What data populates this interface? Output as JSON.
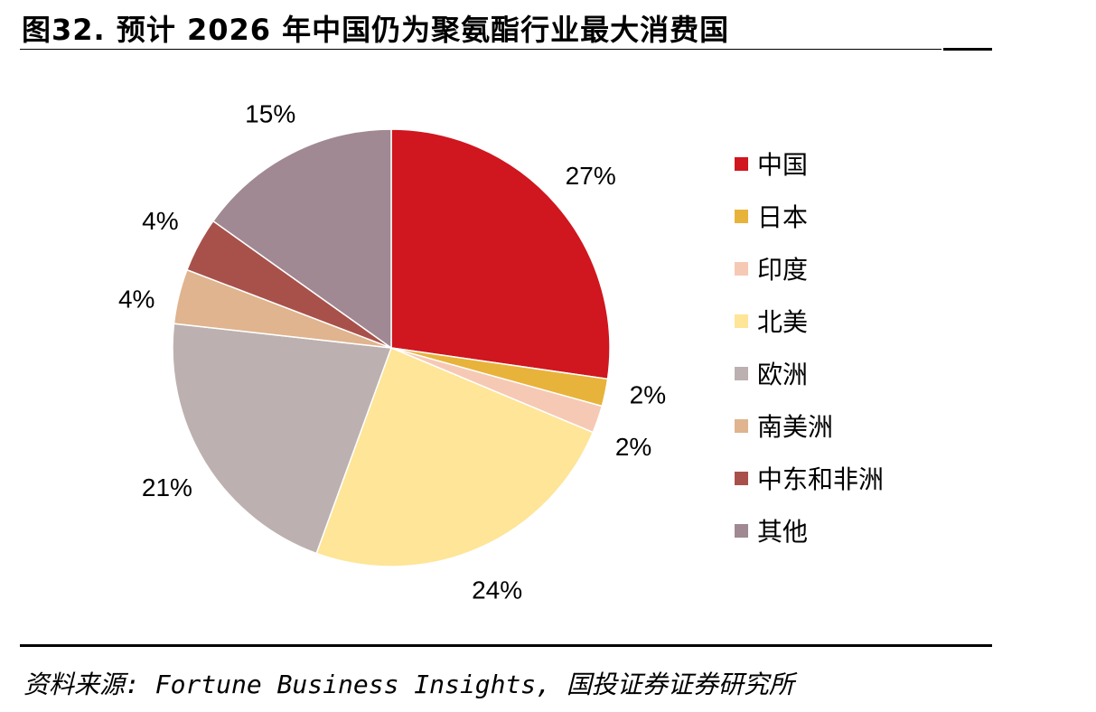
{
  "title": "图32. 预计 2026 年中国仍为聚氨酯行业最大消费国",
  "source": "资料来源: Fortune Business Insights, 国投证券证券研究所",
  "chart_data": {
    "type": "pie",
    "title": "图32. 预计 2026 年中国仍为聚氨酯行业最大消费国",
    "start_angle_deg": 0,
    "direction": "clockwise",
    "legend_position": "right",
    "slices": [
      {
        "label": "中国",
        "value": 27,
        "display": "27%",
        "color": "#D0161E"
      },
      {
        "label": "日本",
        "value": 2,
        "display": "2%",
        "color": "#E8B33A"
      },
      {
        "label": "印度",
        "value": 2,
        "display": "2%",
        "color": "#F6C9B5"
      },
      {
        "label": "北美",
        "value": 24,
        "display": "24%",
        "color": "#FEE597"
      },
      {
        "label": "欧洲",
        "value": 21,
        "display": "21%",
        "color": "#BCB1B0"
      },
      {
        "label": "南美洲",
        "value": 4,
        "display": "4%",
        "color": "#DFB48E"
      },
      {
        "label": "中东和非洲",
        "value": 4,
        "display": "4%",
        "color": "#A8514A"
      },
      {
        "label": "其他",
        "value": 15,
        "display": "15%",
        "color": "#A08993"
      }
    ]
  }
}
